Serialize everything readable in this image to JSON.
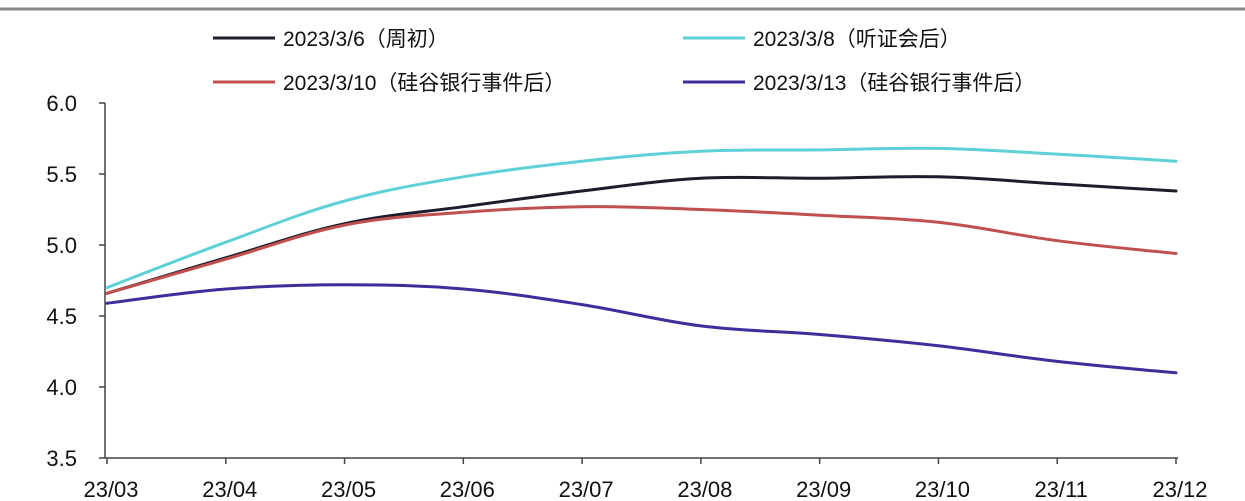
{
  "chart_data": {
    "type": "line",
    "title": "",
    "xlabel": "",
    "ylabel": "",
    "categories": [
      "23/03",
      "23/04",
      "23/05",
      "23/06",
      "23/07",
      "23/08",
      "23/09",
      "23/10",
      "23/11",
      "23/12"
    ],
    "y_ticks": [
      "6.0",
      "5.5",
      "5.0",
      "4.5",
      "4.0",
      "3.5"
    ],
    "ylim": [
      3.5,
      6.0
    ],
    "grid": false,
    "legend_position": "top",
    "series": [
      {
        "name": "2023/3/6（周初）",
        "color": "#1c1c2e",
        "values": [
          4.66,
          4.91,
          5.15,
          5.27,
          5.38,
          5.47,
          5.47,
          5.48,
          5.43,
          5.38
        ]
      },
      {
        "name": "2023/3/8（听证会后）",
        "color": "#5ed0d8",
        "values": [
          4.7,
          5.02,
          5.31,
          5.48,
          5.59,
          5.66,
          5.67,
          5.68,
          5.64,
          5.59
        ]
      },
      {
        "name": "2023/3/10（硅谷银行事件后）",
        "color": "#c0504d",
        "values": [
          4.66,
          4.9,
          5.14,
          5.23,
          5.27,
          5.25,
          5.21,
          5.16,
          5.03,
          4.94
        ]
      },
      {
        "name": "2023/3/13（硅谷银行事件后）",
        "color": "#3b2f9e",
        "values": [
          4.59,
          4.69,
          4.72,
          4.69,
          4.58,
          4.43,
          4.37,
          4.29,
          4.18,
          4.1
        ]
      }
    ]
  }
}
